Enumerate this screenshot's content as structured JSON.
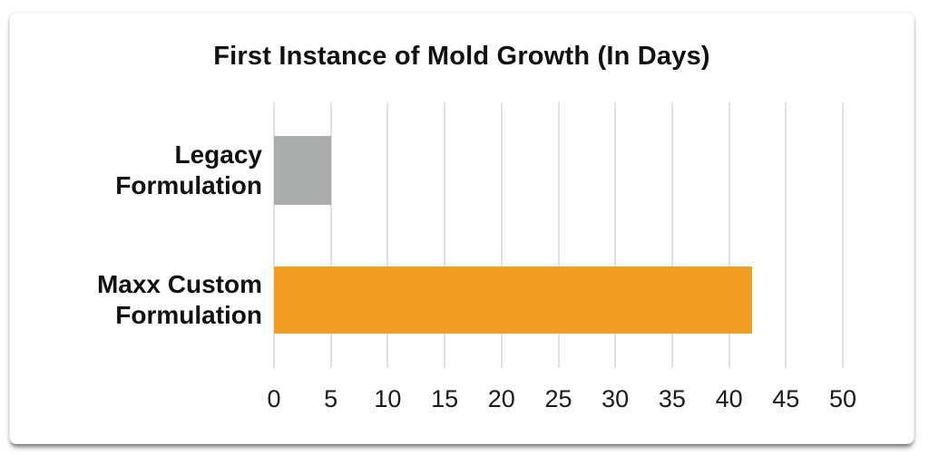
{
  "chart_data": {
    "type": "bar",
    "orientation": "horizontal",
    "title": "First Instance of Mold Growth (In Days)",
    "categories": [
      "Legacy Formulation",
      "Maxx Custom Formulation"
    ],
    "category_lines": [
      [
        "Legacy",
        "Formulation"
      ],
      [
        "Maxx Custom",
        "Formulation"
      ]
    ],
    "values": [
      5,
      42
    ],
    "bar_colors": [
      "#a9acaa",
      "#f09d22"
    ],
    "x_ticks": [
      "0",
      "5",
      "10",
      "15",
      "20",
      "25",
      "30",
      "35",
      "40",
      "45",
      "50"
    ],
    "xlim": [
      0,
      50
    ],
    "xlabel": "",
    "ylabel": "",
    "grid": true,
    "legend": "none"
  },
  "colors": {
    "accent_orange": "#f09d22",
    "neutral_gray": "#a9acaa",
    "gridline": "#e1e1e1",
    "text": "#111111",
    "tick_text": "#1a1a1a",
    "card_background": "#ffffff"
  }
}
